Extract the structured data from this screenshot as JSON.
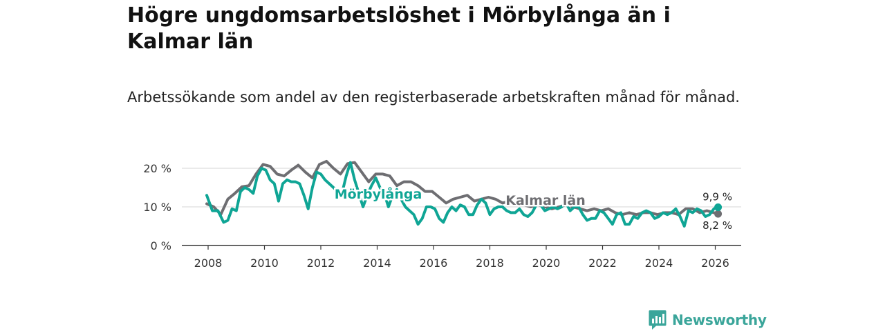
{
  "title": "Högre ungdomsarbetslöshet i Mörbylånga än i Kalmar län",
  "subtitle": "Arbetssökande som andel av den registerbaserade arbetskraften månad för månad.",
  "brand": {
    "name": "Newsworthy",
    "logo_icon": "bar-chart-speech-icon",
    "color": "#3aa59a"
  },
  "chart_data": {
    "type": "line",
    "title": "Högre ungdomsarbetslöshet i Mörbylånga än i Kalmar län",
    "xlabel": "",
    "ylabel": "",
    "xlim": [
      2007.5,
      2027
    ],
    "ylim": [
      0,
      22
    ],
    "x_ticks": [
      2008,
      2010,
      2012,
      2014,
      2016,
      2018,
      2020,
      2022,
      2024,
      2026
    ],
    "x_tick_labels": [
      "2008",
      "2010",
      "2012",
      "2014",
      "2016",
      "2018",
      "2020",
      "2022",
      "2024",
      "2026"
    ],
    "y_ticks": [
      0,
      10,
      20
    ],
    "y_tick_labels": [
      "0 %",
      "10 %",
      "20 %"
    ],
    "grid": true,
    "series": [
      {
        "name": "Kalmar län",
        "color": "#6e6e72",
        "label": "Kalmar län",
        "end_label": "8,2 %",
        "x": [
          2007.95,
          2008.2,
          2008.45,
          2008.7,
          2008.95,
          2009.2,
          2009.45,
          2009.7,
          2009.95,
          2010.2,
          2010.45,
          2010.7,
          2010.95,
          2011.2,
          2011.45,
          2011.7,
          2011.95,
          2012.2,
          2012.45,
          2012.7,
          2012.95,
          2013.2,
          2013.45,
          2013.7,
          2013.95,
          2014.2,
          2014.45,
          2014.7,
          2014.95,
          2015.2,
          2015.45,
          2015.7,
          2015.95,
          2016.2,
          2016.45,
          2016.7,
          2016.95,
          2017.2,
          2017.45,
          2017.7,
          2017.95,
          2018.2,
          2018.45,
          2018.7,
          2018.95,
          2019.2,
          2019.45,
          2019.7,
          2019.95,
          2020.2,
          2020.45,
          2020.7,
          2020.95,
          2021.2,
          2021.45,
          2021.7,
          2021.95,
          2022.2,
          2022.45,
          2022.7,
          2022.95,
          2023.2,
          2023.45,
          2023.7,
          2023.95,
          2024.2,
          2024.45,
          2024.7,
          2024.95,
          2025.2,
          2025.45,
          2025.7,
          2025.95,
          2026.1
        ],
        "y": [
          10.8,
          10.0,
          8.0,
          12.0,
          13.5,
          15.2,
          15.5,
          18.5,
          21.0,
          20.5,
          18.5,
          18.0,
          19.5,
          20.8,
          19.0,
          17.5,
          21.0,
          21.8,
          20.0,
          18.5,
          21.2,
          21.5,
          19.0,
          16.5,
          18.5,
          18.5,
          18.0,
          15.5,
          16.5,
          16.5,
          15.5,
          14.0,
          14.0,
          12.5,
          11.0,
          12.0,
          12.5,
          13.0,
          11.5,
          12.0,
          12.5,
          12.0,
          11.0,
          11.5,
          11.0,
          10.5,
          10.0,
          10.5,
          10.0,
          9.5,
          10.0,
          10.5,
          10.0,
          9.5,
          9.0,
          9.5,
          9.0,
          9.5,
          8.5,
          8.0,
          8.5,
          8.0,
          8.5,
          8.5,
          8.0,
          8.5,
          8.5,
          8.0,
          9.5,
          9.5,
          8.5,
          9.0,
          8.5,
          8.2
        ]
      },
      {
        "name": "Mörbylånga",
        "color": "#0fa595",
        "label": "Mörbylånga",
        "end_label": "9,9 %",
        "x": [
          2007.95,
          2008.15,
          2008.35,
          2008.55,
          2008.7,
          2008.85,
          2009.0,
          2009.15,
          2009.3,
          2009.45,
          2009.6,
          2009.75,
          2009.9,
          2010.05,
          2010.2,
          2010.35,
          2010.5,
          2010.65,
          2010.8,
          2010.95,
          2011.1,
          2011.25,
          2011.4,
          2011.55,
          2011.7,
          2011.85,
          2012.0,
          2012.15,
          2012.3,
          2012.45,
          2012.6,
          2012.75,
          2012.9,
          2013.05,
          2013.2,
          2013.35,
          2013.5,
          2013.65,
          2013.8,
          2013.95,
          2014.1,
          2014.25,
          2014.4,
          2014.55,
          2014.7,
          2014.85,
          2015.0,
          2015.15,
          2015.3,
          2015.45,
          2015.6,
          2015.75,
          2015.9,
          2016.05,
          2016.2,
          2016.35,
          2016.5,
          2016.65,
          2016.8,
          2016.95,
          2017.1,
          2017.25,
          2017.4,
          2017.55,
          2017.7,
          2017.85,
          2018.0,
          2018.15,
          2018.3,
          2018.45,
          2018.6,
          2018.75,
          2018.9,
          2019.05,
          2019.2,
          2019.35,
          2019.5,
          2019.65,
          2019.8,
          2019.95,
          2020.1,
          2020.25,
          2020.4,
          2020.55,
          2020.7,
          2020.85,
          2021.0,
          2021.15,
          2021.3,
          2021.45,
          2021.6,
          2021.75,
          2021.9,
          2022.05,
          2022.2,
          2022.35,
          2022.5,
          2022.65,
          2022.8,
          2022.95,
          2023.1,
          2023.25,
          2023.4,
          2023.55,
          2023.7,
          2023.85,
          2024.0,
          2024.15,
          2024.3,
          2024.45,
          2024.6,
          2024.75,
          2024.9,
          2025.05,
          2025.2,
          2025.35,
          2025.5,
          2025.65,
          2025.8,
          2025.95,
          2026.1
        ],
        "y": [
          13.0,
          9.0,
          9.0,
          6.0,
          6.5,
          9.5,
          9.0,
          14.0,
          15.0,
          14.5,
          13.5,
          18.0,
          20.0,
          19.5,
          17.0,
          16.0,
          11.5,
          16.0,
          17.0,
          16.5,
          16.5,
          16.0,
          13.0,
          9.5,
          15.0,
          19.0,
          18.5,
          17.0,
          16.0,
          15.0,
          14.0,
          13.5,
          18.0,
          21.5,
          17.0,
          13.5,
          10.0,
          13.0,
          15.5,
          17.5,
          15.0,
          13.5,
          10.0,
          13.0,
          14.5,
          12.0,
          10.0,
          9.0,
          8.0,
          5.5,
          7.0,
          10.0,
          10.0,
          9.5,
          7.0,
          6.0,
          8.5,
          10.0,
          9.0,
          10.5,
          10.0,
          8.0,
          8.0,
          10.5,
          12.0,
          11.0,
          8.0,
          9.5,
          10.0,
          10.0,
          9.0,
          8.5,
          8.5,
          9.5,
          8.0,
          7.5,
          8.5,
          10.5,
          10.5,
          9.0,
          9.5,
          10.0,
          9.5,
          10.0,
          11.0,
          9.0,
          10.0,
          10.0,
          8.0,
          6.5,
          7.0,
          7.0,
          9.0,
          8.5,
          7.0,
          5.5,
          8.0,
          8.5,
          5.5,
          5.5,
          7.5,
          7.0,
          8.5,
          9.0,
          8.5,
          7.0,
          7.5,
          8.5,
          8.0,
          8.5,
          9.5,
          7.5,
          5.0,
          9.0,
          8.5,
          9.5,
          9.0,
          7.5,
          8.0,
          9.5,
          9.9
        ]
      }
    ]
  }
}
